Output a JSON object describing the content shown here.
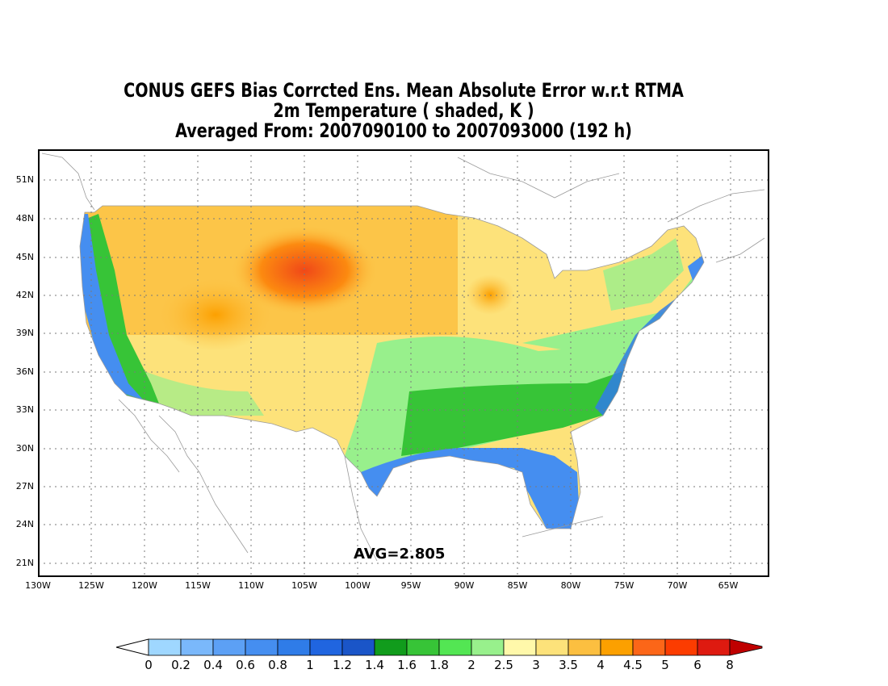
{
  "title": {
    "line1": "CONUS GEFS Bias Corrcted Ens. Mean Absolute Error w.r.t RTMA",
    "line2": "2m Temperature ( shaded, K )",
    "line3": "Averaged From: 2007090100 to 2007093000 (192 h)"
  },
  "map": {
    "lat_ticks": [
      "51N",
      "48N",
      "45N",
      "42N",
      "39N",
      "36N",
      "33N",
      "30N",
      "27N",
      "24N",
      "21N"
    ],
    "lon_ticks": [
      "130W",
      "125W",
      "120W",
      "115W",
      "110W",
      "105W",
      "100W",
      "95W",
      "90W",
      "85W",
      "80W",
      "75W",
      "70W",
      "65W"
    ],
    "avg_label": "AVG=2.805",
    "grid": true
  },
  "colorbar": {
    "labels": [
      "0",
      "0.2",
      "0.4",
      "0.6",
      "0.8",
      "1",
      "1.2",
      "1.4",
      "1.6",
      "1.8",
      "2",
      "2.5",
      "3",
      "3.5",
      "4",
      "4.5",
      "5",
      "6",
      "8"
    ],
    "colors": [
      "#9fd7ff",
      "#7ab8fb",
      "#5ca0f5",
      "#458ef0",
      "#2f7ce8",
      "#2065e0",
      "#1a55c8",
      "#119c1c",
      "#37c437",
      "#53e653",
      "#98f08c",
      "#fff8aa",
      "#fde27a",
      "#fcbf40",
      "#fca000",
      "#fc6618",
      "#fc3c00",
      "#de1a10",
      "#bf0000"
    ]
  }
}
